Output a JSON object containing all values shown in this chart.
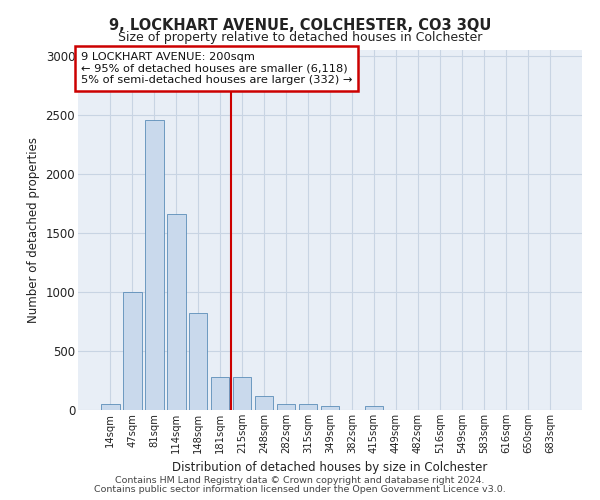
{
  "title1": "9, LOCKHART AVENUE, COLCHESTER, CO3 3QU",
  "title2": "Size of property relative to detached houses in Colchester",
  "xlabel": "Distribution of detached houses by size in Colchester",
  "ylabel": "Number of detached properties",
  "categories": [
    "14sqm",
    "47sqm",
    "81sqm",
    "114sqm",
    "148sqm",
    "181sqm",
    "215sqm",
    "248sqm",
    "282sqm",
    "315sqm",
    "349sqm",
    "382sqm",
    "415sqm",
    "449sqm",
    "482sqm",
    "516sqm",
    "549sqm",
    "583sqm",
    "616sqm",
    "650sqm",
    "683sqm"
  ],
  "values": [
    55,
    1000,
    2460,
    1660,
    820,
    280,
    280,
    120,
    50,
    50,
    30,
    0,
    30,
    0,
    0,
    0,
    0,
    0,
    0,
    0,
    0
  ],
  "bar_color": "#c9d9ec",
  "bar_edge_color": "#5b8db8",
  "grid_color": "#c8d4e3",
  "background_color": "#ffffff",
  "plot_bg_color": "#e8eef6",
  "vline_x_idx": 6,
  "vline_color": "#cc0000",
  "annotation_text": "9 LOCKHART AVENUE: 200sqm\n← 95% of detached houses are smaller (6,118)\n5% of semi-detached houses are larger (332) →",
  "annotation_box_color": "#ffffff",
  "annotation_box_edge": "#cc0000",
  "ylim": [
    0,
    3050
  ],
  "yticks": [
    0,
    500,
    1000,
    1500,
    2000,
    2500,
    3000
  ],
  "footer1": "Contains HM Land Registry data © Crown copyright and database right 2024.",
  "footer2": "Contains public sector information licensed under the Open Government Licence v3.0."
}
